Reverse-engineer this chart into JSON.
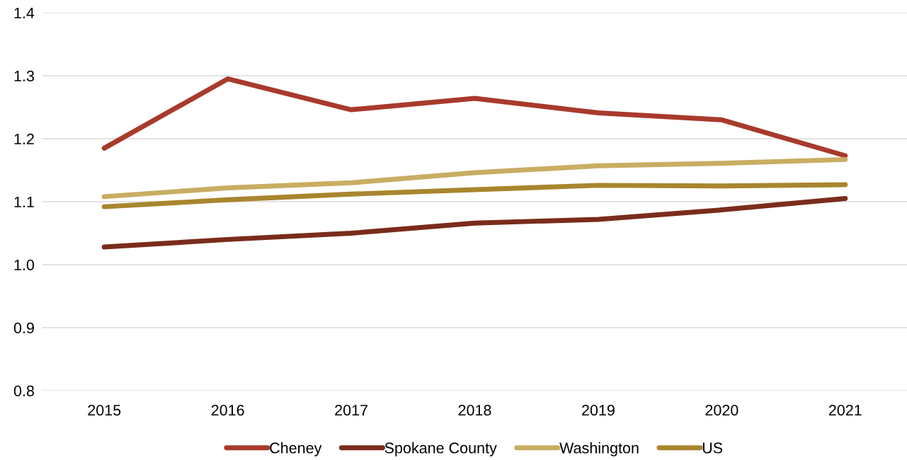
{
  "chart_data": {
    "type": "line",
    "categories": [
      "2015",
      "2016",
      "2017",
      "2018",
      "2019",
      "2020",
      "2021"
    ],
    "series": [
      {
        "name": "Cheney",
        "color": "#a83a2c",
        "values": [
          1.185,
          1.295,
          1.246,
          1.264,
          1.241,
          1.23,
          1.173
        ]
      },
      {
        "name": "Spokane County",
        "color": "#7a2c1b",
        "values": [
          1.028,
          1.04,
          1.05,
          1.066,
          1.072,
          1.087,
          1.105
        ]
      },
      {
        "name": "Washington",
        "color": "#c9ad62",
        "values": [
          1.108,
          1.122,
          1.13,
          1.146,
          1.157,
          1.161,
          1.167
        ]
      },
      {
        "name": "US",
        "color": "#a8862e",
        "values": [
          1.092,
          1.103,
          1.112,
          1.119,
          1.126,
          1.125,
          1.127
        ]
      }
    ],
    "ylim": [
      0.8,
      1.4
    ],
    "yticks": [
      {
        "value": 0.8,
        "label": "0.8"
      },
      {
        "value": 0.9,
        "label": "0.9"
      },
      {
        "value": 1.0,
        "label": "1.0"
      },
      {
        "value": 1.1,
        "label": "1.1"
      },
      {
        "value": 1.2,
        "label": "1.2"
      },
      {
        "value": 1.3,
        "label": "1.3"
      },
      {
        "value": 1.4,
        "label": "1.4"
      }
    ],
    "grid": "y",
    "legend": "bottom",
    "marker": "none",
    "line_style": "solid"
  }
}
